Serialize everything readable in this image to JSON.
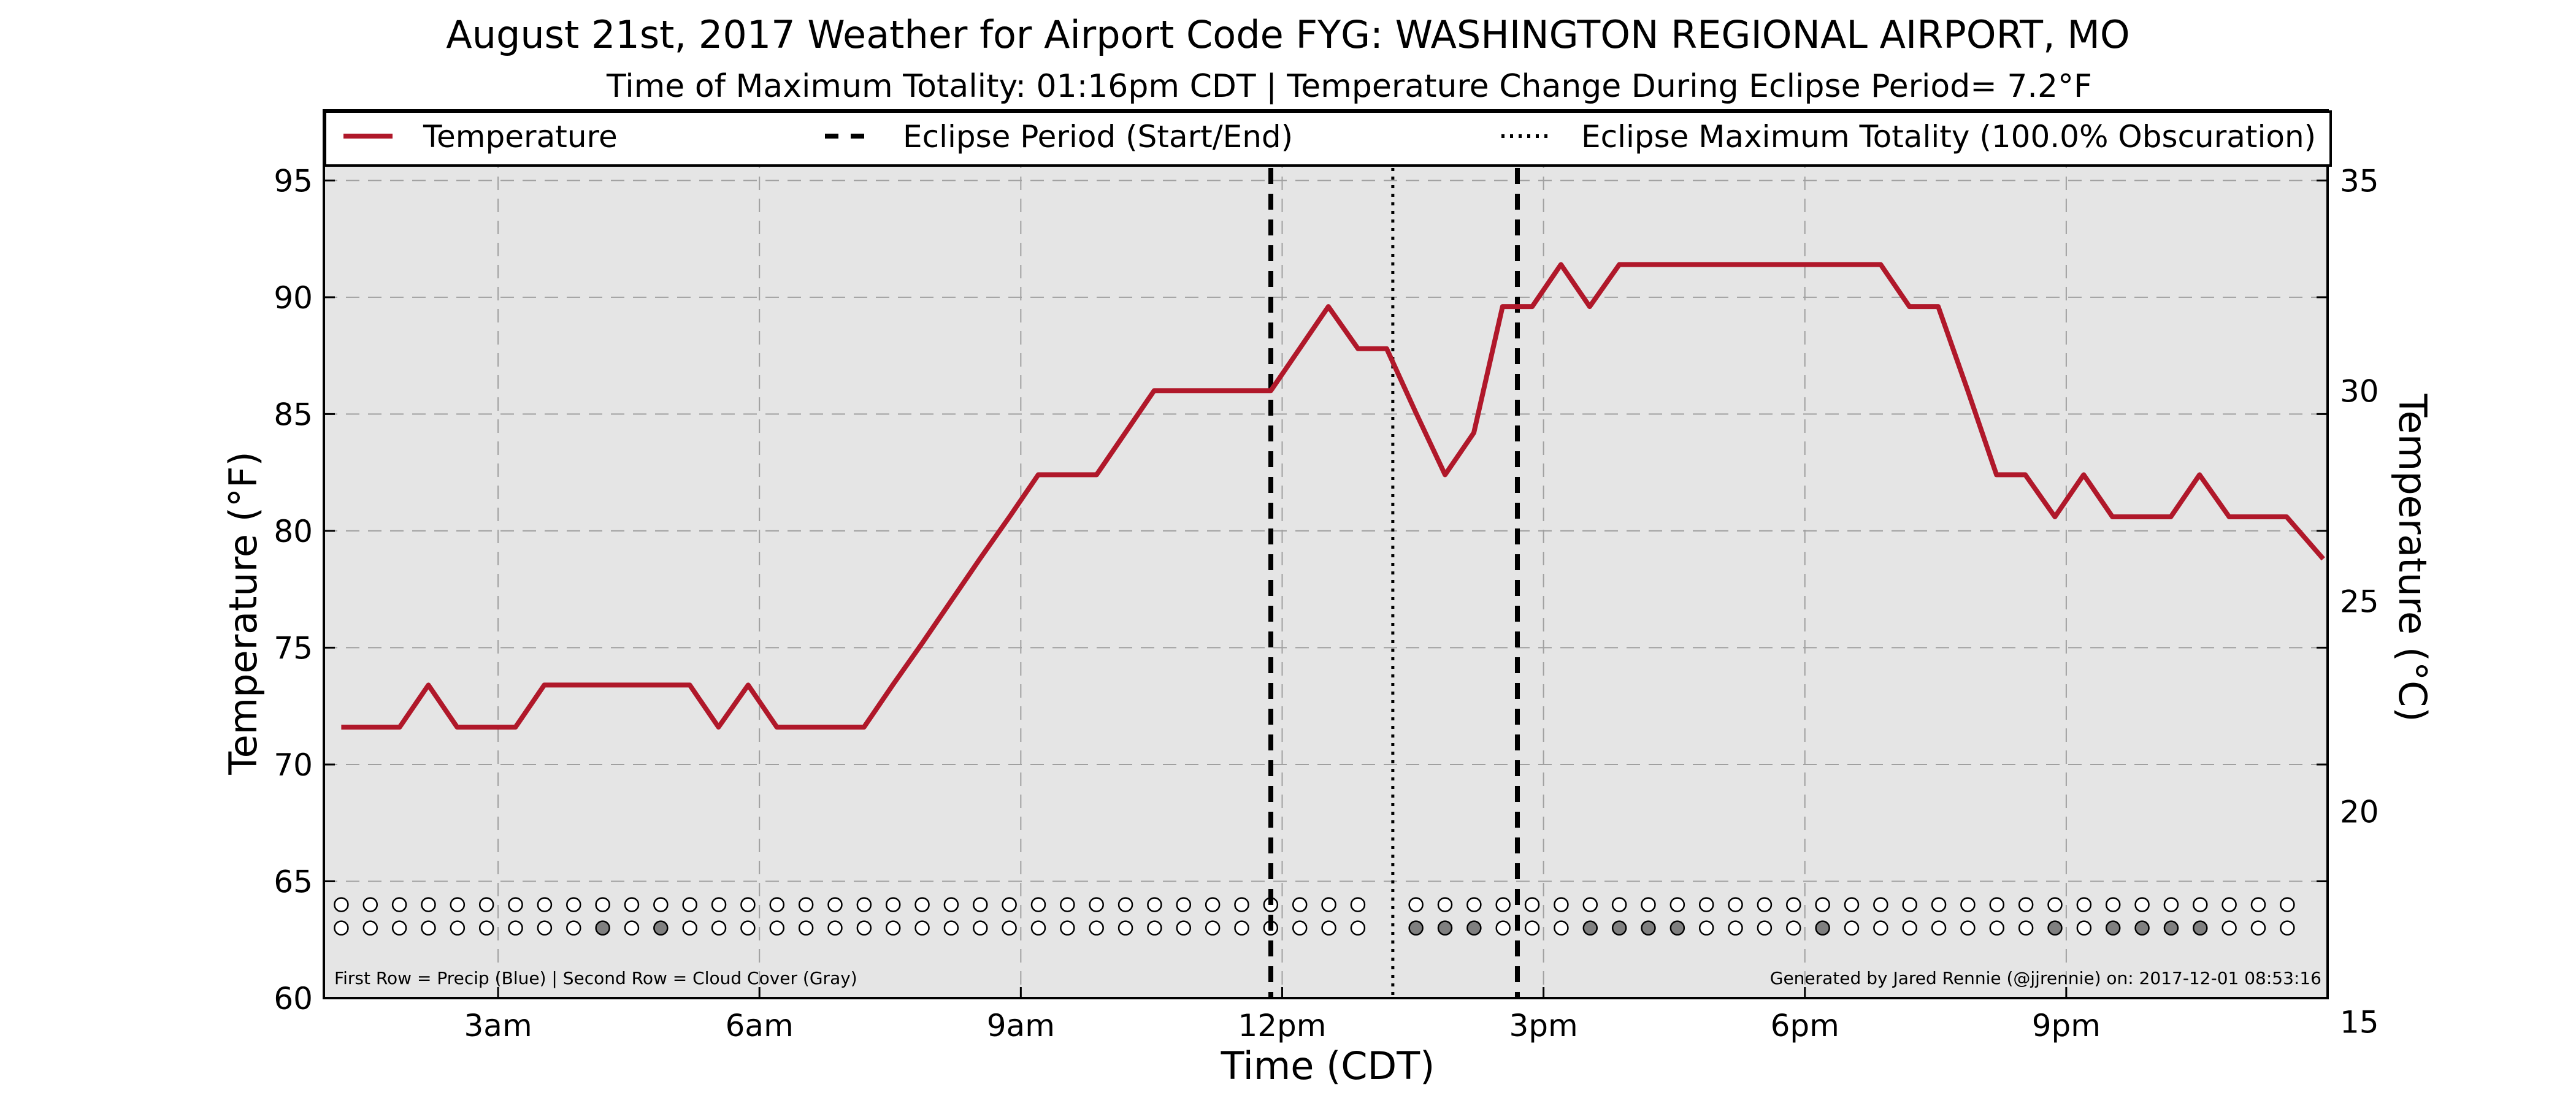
{
  "chart_data": {
    "type": "line",
    "title": "August 21st, 2017 Weather for Airport Code FYG: WASHINGTON REGIONAL AIRPORT, MO",
    "subtitle": "Time of Maximum Totality: 01:16pm CDT | Temperature Change During Eclipse Period= 7.2°F",
    "xlabel": "Time (CDT)",
    "ylabel": "Temperature (°F)",
    "ylabel_right": "Temperature (°C)",
    "x_unit": "hours since midnight CDT",
    "xlim": [
      1.0,
      24.0
    ],
    "ylim": [
      60,
      98
    ],
    "ylim_right_celsius": [
      15.56,
      36.67
    ],
    "x_ticks": [
      {
        "x": 3,
        "label": "3am"
      },
      {
        "x": 6,
        "label": "6am"
      },
      {
        "x": 9,
        "label": "9am"
      },
      {
        "x": 12,
        "label": "12pm"
      },
      {
        "x": 15,
        "label": "3pm"
      },
      {
        "x": 18,
        "label": "6pm"
      },
      {
        "x": 21,
        "label": "9pm"
      }
    ],
    "y_ticks": [
      60,
      65,
      70,
      75,
      80,
      85,
      90,
      95
    ],
    "y_ticks_right": [
      15,
      20,
      25,
      30,
      35
    ],
    "grid": true,
    "legend_position": "top",
    "legend": [
      {
        "label": "Temperature",
        "style": "solid",
        "color": "#b0182a"
      },
      {
        "label": "Eclipse Period (Start/End)",
        "style": "dashed",
        "color": "#000000"
      },
      {
        "label": "Eclipse Maximum Totality (100.0% Obscuration)",
        "style": "dotted",
        "color": "#000000"
      }
    ],
    "series": [
      {
        "name": "Temperature",
        "color": "#b0182a",
        "x": [
          1.2,
          1.87,
          2.2,
          2.53,
          2.87,
          3.2,
          3.53,
          3.87,
          4.2,
          4.53,
          4.87,
          5.2,
          5.53,
          5.87,
          6.2,
          6.53,
          6.87,
          7.2,
          7.53,
          7.87,
          8.2,
          8.53,
          8.87,
          9.2,
          9.53,
          9.87,
          10.2,
          10.53,
          10.87,
          11.2,
          11.53,
          11.87,
          12.2,
          12.53,
          12.87,
          13.2,
          13.53,
          13.87,
          14.2,
          14.53,
          14.87,
          15.2,
          15.53,
          15.87,
          16.2,
          16.53,
          16.87,
          17.2,
          17.53,
          17.87,
          18.2,
          18.53,
          18.87,
          19.2,
          19.53,
          19.87,
          20.2,
          20.53,
          20.87,
          21.2,
          21.53,
          21.87,
          22.2,
          22.53,
          22.87,
          23.2,
          23.53,
          23.95
        ],
        "values": [
          71.6,
          71.6,
          73.4,
          71.6,
          71.6,
          71.6,
          73.4,
          73.4,
          73.4,
          73.4,
          73.4,
          73.4,
          71.6,
          73.4,
          71.6,
          71.6,
          71.6,
          71.6,
          73.4,
          75.2,
          77.0,
          78.8,
          80.6,
          82.4,
          82.4,
          82.4,
          84.2,
          86.0,
          86.0,
          86.0,
          86.0,
          86.0,
          87.8,
          89.6,
          87.8,
          87.8,
          85.1,
          82.4,
          84.2,
          89.6,
          89.6,
          91.4,
          89.6,
          91.4,
          91.4,
          91.4,
          91.4,
          91.4,
          91.4,
          91.4,
          91.4,
          91.4,
          91.4,
          89.6,
          89.6,
          86.0,
          82.4,
          82.4,
          80.6,
          82.4,
          80.6,
          80.6,
          80.6,
          82.4,
          80.6,
          80.6,
          80.6,
          78.8
        ]
      }
    ],
    "eclipse_start": 11.87,
    "eclipse_end": 14.7,
    "max_totality": 13.27,
    "precip_cloud_markers": {
      "x_start": 1.2,
      "x_step": 0.3334,
      "count": 68,
      "gaps": [
        36
      ],
      "precip_row_y": 64.0,
      "cloud_row_y": 63.0,
      "precip_filled": [],
      "cloud_filled": [
        9,
        11,
        37,
        38,
        39,
        43,
        44,
        45,
        46,
        51,
        59,
        61,
        62,
        63,
        64
      ]
    },
    "footnote_left": "First Row = Precip (Blue) | Second Row = Cloud Cover (Gray)",
    "footnote_right": "Generated by Jared Rennie (@jjrennie) on: 2017-12-01 08:53:16",
    "colors": {
      "plot_bg": "#e5e5e5",
      "line": "#b0182a",
      "cloud_fill": "#808080",
      "precip_fill": "#1f77b4",
      "grid": "#a0a0a0"
    }
  }
}
